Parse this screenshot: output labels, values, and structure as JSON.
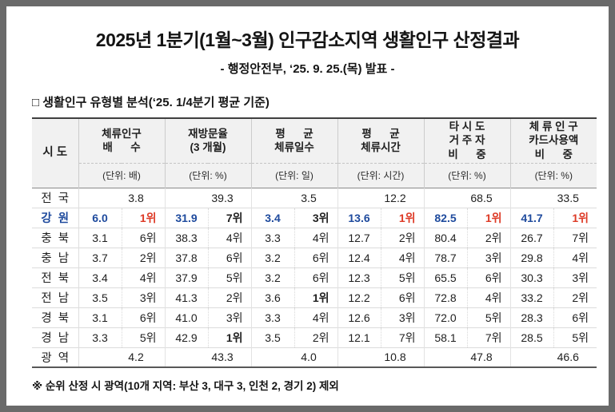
{
  "header": {
    "title": "2025년 1분기(1월~3월) 인구감소지역 생활인구 산정결과",
    "subtitle": "- 행정안전부, ‘25. 9. 25.(목) 발표 -"
  },
  "section": {
    "label": "□ 생활인구 유형별 분석(‘25. 1/4분기 평균 기준)"
  },
  "table": {
    "region_header": "시  도",
    "columns": [
      {
        "title_lines": [
          "체류인구",
          "배      수"
        ],
        "unit": "(단위: 배)"
      },
      {
        "title_lines": [
          "재방문율",
          "(3 개월)"
        ],
        "unit": "(단위: %)"
      },
      {
        "title_lines": [
          "평      균",
          "체류일수"
        ],
        "unit": "(단위: 일)"
      },
      {
        "title_lines": [
          "평      균",
          "체류시간"
        ],
        "unit": "(단위: 시간)"
      },
      {
        "title_lines": [
          "타 시 도",
          "거 주 자",
          "비      중"
        ],
        "unit": "(단위: %)"
      },
      {
        "title_lines": [
          "체 류 인 구",
          "카드사용액",
          "비      중"
        ],
        "unit": "(단위: %)"
      }
    ],
    "rows": [
      {
        "region": "전  국",
        "type": "merged",
        "highlight": false,
        "values": [
          "3.8",
          "39.3",
          "3.5",
          "12.2",
          "68.5",
          "33.5"
        ]
      },
      {
        "region": "강  원",
        "type": "ranked",
        "highlight": true,
        "cells": [
          {
            "value": "6.0",
            "rank": "1위"
          },
          {
            "value": "31.9",
            "rank": "7위"
          },
          {
            "value": "3.4",
            "rank": "3위"
          },
          {
            "value": "13.6",
            "rank": "1위"
          },
          {
            "value": "82.5",
            "rank": "1위"
          },
          {
            "value": "41.7",
            "rank": "1위"
          }
        ]
      },
      {
        "region": "충  북",
        "type": "ranked",
        "highlight": false,
        "cells": [
          {
            "value": "3.1",
            "rank": "6위"
          },
          {
            "value": "38.3",
            "rank": "4위"
          },
          {
            "value": "3.3",
            "rank": "4위"
          },
          {
            "value": "12.7",
            "rank": "2위"
          },
          {
            "value": "80.4",
            "rank": "2위"
          },
          {
            "value": "26.7",
            "rank": "7위"
          }
        ]
      },
      {
        "region": "충  남",
        "type": "ranked",
        "highlight": false,
        "cells": [
          {
            "value": "3.7",
            "rank": "2위"
          },
          {
            "value": "37.8",
            "rank": "6위"
          },
          {
            "value": "3.2",
            "rank": "6위"
          },
          {
            "value": "12.4",
            "rank": "4위"
          },
          {
            "value": "78.7",
            "rank": "3위"
          },
          {
            "value": "29.8",
            "rank": "4위"
          }
        ]
      },
      {
        "region": "전  북",
        "type": "ranked",
        "highlight": false,
        "cells": [
          {
            "value": "3.4",
            "rank": "4위"
          },
          {
            "value": "37.9",
            "rank": "5위"
          },
          {
            "value": "3.2",
            "rank": "6위"
          },
          {
            "value": "12.3",
            "rank": "5위"
          },
          {
            "value": "65.5",
            "rank": "6위"
          },
          {
            "value": "30.3",
            "rank": "3위"
          }
        ]
      },
      {
        "region": "전  남",
        "type": "ranked",
        "highlight": false,
        "cells": [
          {
            "value": "3.5",
            "rank": "3위"
          },
          {
            "value": "41.3",
            "rank": "2위"
          },
          {
            "value": "3.6",
            "rank": "1위"
          },
          {
            "value": "12.2",
            "rank": "6위"
          },
          {
            "value": "72.8",
            "rank": "4위"
          },
          {
            "value": "33.2",
            "rank": "2위"
          }
        ]
      },
      {
        "region": "경  북",
        "type": "ranked",
        "highlight": false,
        "cells": [
          {
            "value": "3.1",
            "rank": "6위"
          },
          {
            "value": "41.0",
            "rank": "3위"
          },
          {
            "value": "3.3",
            "rank": "4위"
          },
          {
            "value": "12.6",
            "rank": "3위"
          },
          {
            "value": "72.0",
            "rank": "5위"
          },
          {
            "value": "28.3",
            "rank": "6위"
          }
        ]
      },
      {
        "region": "경  남",
        "type": "ranked",
        "highlight": false,
        "cells": [
          {
            "value": "3.3",
            "rank": "5위"
          },
          {
            "value": "42.9",
            "rank": "1위"
          },
          {
            "value": "3.5",
            "rank": "2위"
          },
          {
            "value": "12.1",
            "rank": "7위"
          },
          {
            "value": "58.1",
            "rank": "7위"
          },
          {
            "value": "28.5",
            "rank": "5위"
          }
        ]
      },
      {
        "region": "광  역",
        "type": "merged",
        "highlight": false,
        "values": [
          "4.2",
          "43.3",
          "4.0",
          "10.8",
          "47.8",
          "46.6"
        ]
      }
    ],
    "top_rank_label": "1위"
  },
  "footnote": "※ 순위 산정 시 광역(10개 지역: 부산 3, 대구 3, 인천 2, 경기 2) 제외",
  "colors": {
    "highlight_blue": "#1e4a9d",
    "highlight_red": "#dd3a26",
    "header_bg": "#f1f1f1",
    "frame": "#6a6a6a"
  }
}
